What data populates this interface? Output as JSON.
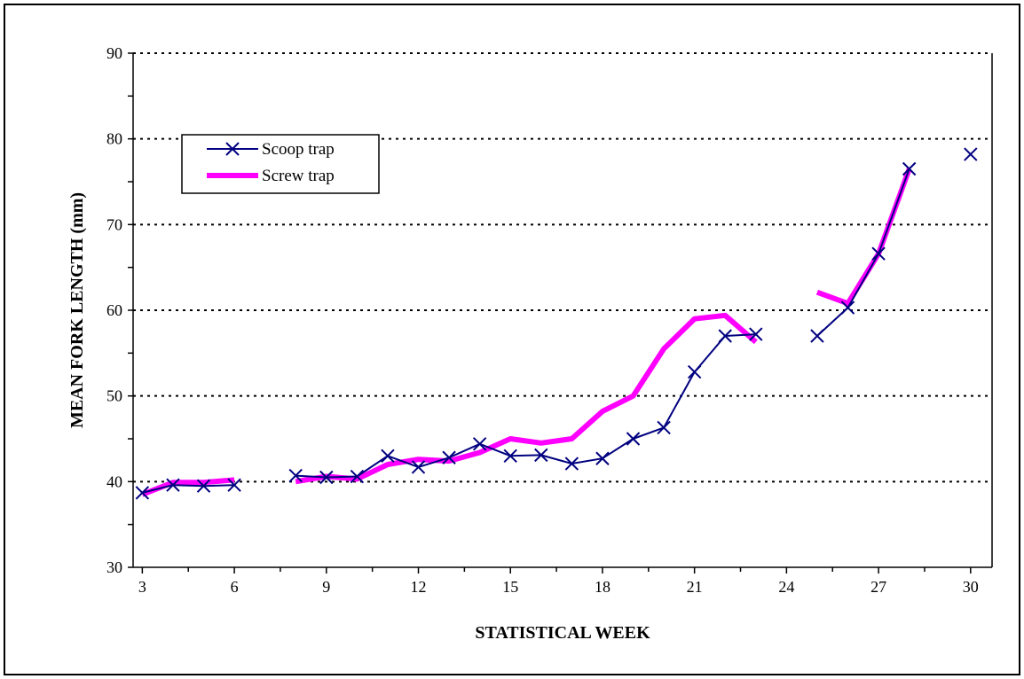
{
  "chart_data": {
    "type": "line",
    "title": "",
    "xlabel": "STATISTICAL WEEK",
    "ylabel": "MEAN FORK LENGTH (mm)",
    "xlim": [
      2.7,
      30.7
    ],
    "ylim": [
      30,
      90
    ],
    "x_ticks": [
      3,
      6,
      9,
      12,
      15,
      18,
      21,
      24,
      27,
      30
    ],
    "y_ticks": [
      30,
      40,
      50,
      60,
      70,
      80,
      90
    ],
    "grid": {
      "y_major": true,
      "style": "dotted"
    },
    "legend": {
      "position": "upper-left"
    },
    "series": [
      {
        "name": "Scoop trap",
        "color": "#000080",
        "marker": "x",
        "points": [
          [
            3,
            38.7
          ],
          [
            4,
            39.6
          ],
          [
            5,
            39.5
          ],
          [
            6,
            39.6
          ],
          null,
          [
            8,
            40.7
          ],
          [
            9,
            40.5
          ],
          [
            10,
            40.6
          ],
          [
            11,
            43.0
          ],
          [
            12,
            41.7
          ],
          [
            13,
            42.8
          ],
          [
            14,
            44.4
          ],
          [
            15,
            43.0
          ],
          [
            16,
            43.1
          ],
          [
            17,
            42.1
          ],
          [
            18,
            42.7
          ],
          [
            19,
            45.0
          ],
          [
            20,
            46.3
          ],
          [
            21,
            52.8
          ],
          [
            22,
            57.0
          ],
          [
            23,
            57.2
          ],
          null,
          [
            25,
            57.0
          ],
          [
            26,
            60.3
          ],
          [
            27,
            66.6
          ],
          [
            28,
            76.5
          ],
          null,
          [
            30,
            78.2
          ]
        ]
      },
      {
        "name": "Screw trap",
        "color": "#ff00ff",
        "marker": "none",
        "points": [
          [
            3,
            38.5
          ],
          [
            4,
            39.9
          ],
          [
            5,
            39.9
          ],
          [
            6,
            40.2
          ],
          null,
          [
            8,
            40.0
          ],
          [
            9,
            40.6
          ],
          [
            10,
            40.3
          ],
          [
            11,
            42.0
          ],
          [
            12,
            42.6
          ],
          [
            13,
            42.4
          ],
          [
            14,
            43.4
          ],
          [
            15,
            45.0
          ],
          [
            16,
            44.5
          ],
          [
            17,
            45.0
          ],
          [
            18,
            48.2
          ],
          [
            19,
            50.0
          ],
          [
            20,
            55.5
          ],
          [
            21,
            59.0
          ],
          [
            22,
            59.4
          ],
          [
            23,
            56.3
          ],
          null,
          [
            25,
            62.1
          ],
          [
            26,
            60.8
          ],
          [
            27,
            66.6
          ],
          [
            28,
            76.5
          ]
        ]
      }
    ]
  }
}
